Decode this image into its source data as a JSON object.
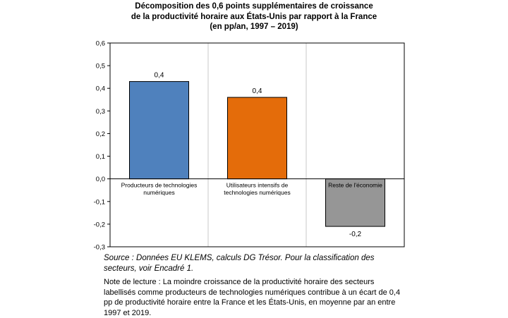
{
  "chart_data": {
    "type": "bar",
    "title_lines": [
      "Décomposition des 0,6 points supplémentaires de croissance",
      "de la productivité horaire aux États-Unis par rapport à la France",
      "(en pp/an, 1997 – 2019)"
    ],
    "categories": [
      "Producteurs de technologies numériques",
      "Utilisateurs intensifs de technologies numériques",
      "Reste de l'économie"
    ],
    "category_label_lines": [
      [
        "Producteurs de technologies",
        "numériques"
      ],
      [
        "Utilisateurs intensifs de",
        "technologies numériques"
      ],
      [
        "Reste de l'économie"
      ]
    ],
    "values": [
      0.43,
      0.36,
      -0.21
    ],
    "data_labels": [
      "0,4",
      "0,4",
      "-0,2"
    ],
    "colors": [
      "#4f81bd",
      "#e46c0a",
      "#969696"
    ],
    "ylim": [
      -0.3,
      0.6
    ],
    "yticks": [
      0.6,
      0.5,
      0.4,
      0.3,
      0.2,
      0.1,
      0.0,
      -0.1,
      -0.2,
      -0.3
    ],
    "ytick_labels": [
      "0,6",
      "0,5",
      "0,4",
      "0,3",
      "0,2",
      "0,1",
      "0,0",
      "-0,1",
      "-0,2",
      "-0,3"
    ],
    "grid": "vertical"
  },
  "notes": {
    "source": "Source : Données EU KLEMS, calculs DG Trésor. Pour la classification des secteurs, voir Encadré 1.",
    "reading": "Note de lecture : La moindre croissance de la productivité horaire des secteurs labellisés comme producteurs de technologies numériques contribue à un écart de 0,4 pp de productivité horaire entre la France et les États-Unis, en moyenne par an entre 1997 et 2019."
  }
}
